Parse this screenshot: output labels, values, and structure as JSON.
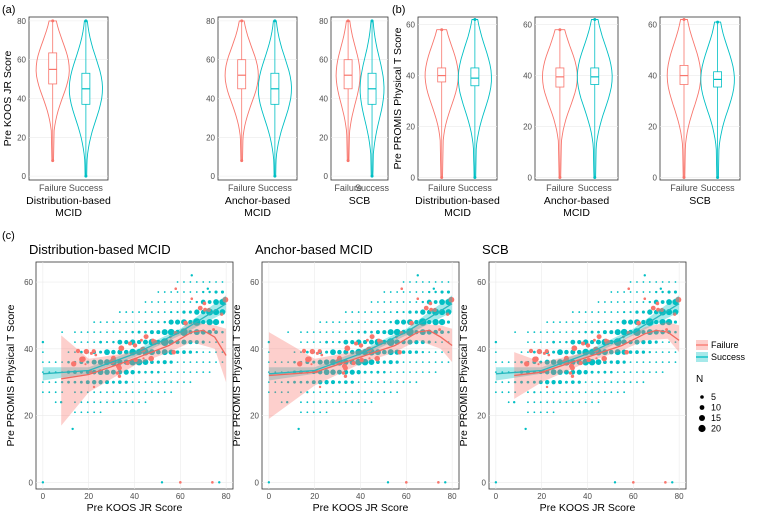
{
  "panel_labels": {
    "a": "(a)",
    "b": "(b)",
    "c": "(c)"
  },
  "colors": {
    "failure": "#F8766D",
    "success": "#00BFC4",
    "grid": "#EBEBEB",
    "trend_success": "#2AB7BD",
    "trend_failure": "#F0685E"
  },
  "chart_data": [
    {
      "type": "violin",
      "panel": "a",
      "ylabel": "Pre KOOS JR Score",
      "ylim": [
        -2,
        82
      ],
      "yticks": [
        0,
        20,
        40,
        60,
        80
      ],
      "facets": [
        {
          "xlabel": "Distribution-based\nMCID",
          "categories": [
            "Failure",
            "Success"
          ],
          "box": [
            {
              "min": 8,
              "q1": 47.5,
              "median": 55,
              "q3": 63.5,
              "max": 80
            },
            {
              "min": 0,
              "q1": 37,
              "median": 45,
              "q3": 53,
              "max": 80
            }
          ]
        },
        {
          "xlabel": "Anchor-based\nMCID",
          "categories": [
            "Failure",
            "Success"
          ],
          "box": [
            {
              "min": 8,
              "q1": 45,
              "median": 52,
              "q3": 60,
              "max": 80
            },
            {
              "min": 0,
              "q1": 37,
              "median": 45,
              "q3": 53,
              "max": 80
            }
          ]
        },
        {
          "xlabel": "SCB",
          "categories": [
            "Failure",
            "Success"
          ],
          "box": [
            {
              "min": 8,
              "q1": 45,
              "median": 52,
              "q3": 60,
              "max": 80
            },
            {
              "min": 0,
              "q1": 37,
              "median": 45,
              "q3": 53,
              "max": 80
            }
          ]
        }
      ]
    },
    {
      "type": "violin",
      "panel": "b",
      "ylabel": "Pre PROMIS Physical T Score",
      "ylim": [
        -1,
        63
      ],
      "yticks": [
        0,
        20,
        40,
        60
      ],
      "facets": [
        {
          "xlabel": "Distribution-based\nMCID",
          "categories": [
            "Failure",
            "Success"
          ],
          "box": [
            {
              "min": 0,
              "q1": 37.5,
              "median": 40,
              "q3": 43,
              "max": 58
            },
            {
              "min": 0,
              "q1": 36,
              "median": 39,
              "q3": 43,
              "max": 62
            }
          ]
        },
        {
          "xlabel": "Anchor-based\nMCID",
          "categories": [
            "Failure",
            "Success"
          ],
          "box": [
            {
              "min": 0,
              "q1": 35.5,
              "median": 39.5,
              "q3": 43,
              "max": 58
            },
            {
              "min": 0,
              "q1": 36.5,
              "median": 39.5,
              "q3": 43,
              "max": 62
            }
          ]
        },
        {
          "xlabel": "SCB",
          "categories": [
            "Failure",
            "Success"
          ],
          "box": [
            {
              "min": 0,
              "q1": 36.5,
              "median": 40,
              "q3": 44,
              "max": 62
            },
            {
              "min": 0,
              "q1": 35.5,
              "median": 38.5,
              "q3": 41.5,
              "max": 61
            }
          ]
        }
      ]
    },
    {
      "type": "scatter",
      "panel": "c",
      "xlabel": "Pre KOOS JR Score",
      "ylabel": "Pre PROMIS Physical T Score",
      "xlim": [
        -3,
        83
      ],
      "ylim": [
        -2,
        66
      ],
      "xticks": [
        0,
        20,
        40,
        60,
        80
      ],
      "yticks": [
        0,
        20,
        40,
        60
      ],
      "facets": [
        {
          "title": "Distribution-based MCID",
          "failure_curve": [
            [
              8,
              31
            ],
            [
              20,
              32.3
            ],
            [
              40,
              37
            ],
            [
              55,
              41
            ],
            [
              65,
              45
            ],
            [
              70,
              45.5
            ],
            [
              75,
              43.5
            ],
            [
              80,
              38
            ]
          ],
          "failure_band": [
            [
              8,
              17,
              44
            ],
            [
              20,
              27,
              37
            ],
            [
              40,
              35,
              39
            ],
            [
              55,
              39,
              43
            ],
            [
              65,
              42,
              48
            ],
            [
              75,
              40,
              47
            ],
            [
              80,
              30,
              46
            ]
          ],
          "success_curve": [
            [
              0,
              32.5
            ],
            [
              20,
              33.5
            ],
            [
              40,
              38.5
            ],
            [
              60,
              45
            ],
            [
              80,
              53.5
            ]
          ],
          "success_band": [
            [
              0,
              30.5,
              34.5
            ],
            [
              20,
              32.5,
              34.5
            ],
            [
              40,
              37.5,
              39.5
            ],
            [
              60,
              44,
              46
            ],
            [
              80,
              51,
              56
            ]
          ]
        },
        {
          "title": "Anchor-based MCID",
          "failure_curve": [
            [
              0,
              32
            ],
            [
              20,
              33
            ],
            [
              40,
              37.5
            ],
            [
              55,
              41
            ],
            [
              65,
              45
            ],
            [
              70,
              45.5
            ],
            [
              75,
              43.5
            ],
            [
              80,
              41
            ]
          ],
          "failure_band": [
            [
              0,
              19,
              45
            ],
            [
              20,
              29,
              37
            ],
            [
              40,
              35.5,
              39.5
            ],
            [
              55,
              39,
              43
            ],
            [
              65,
              42.5,
              47.5
            ],
            [
              75,
              40,
              47
            ],
            [
              80,
              36,
              46
            ]
          ],
          "success_curve": [
            [
              0,
              32.5
            ],
            [
              20,
              33.5
            ],
            [
              40,
              38.5
            ],
            [
              60,
              45
            ],
            [
              80,
              53.5
            ]
          ],
          "success_band": [
            [
              0,
              30.5,
              34.5
            ],
            [
              20,
              32.5,
              34.5
            ],
            [
              40,
              37.5,
              39.5
            ],
            [
              60,
              44,
              46
            ],
            [
              80,
              51,
              56
            ]
          ]
        },
        {
          "title": "SCB",
          "failure_curve": [
            [
              8,
              32
            ],
            [
              20,
              33
            ],
            [
              40,
              37.5
            ],
            [
              55,
              41
            ],
            [
              65,
              44.5
            ],
            [
              70,
              45.5
            ],
            [
              75,
              45
            ],
            [
              80,
              42.5
            ]
          ],
          "failure_band": [
            [
              8,
              25,
              39
            ],
            [
              20,
              30,
              36
            ],
            [
              40,
              36,
              39
            ],
            [
              55,
              39.5,
              42.5
            ],
            [
              65,
              42.5,
              46.5
            ],
            [
              75,
              43,
              48
            ],
            [
              80,
              39,
              47
            ]
          ],
          "success_curve": [
            [
              0,
              32.5
            ],
            [
              20,
              33.5
            ],
            [
              40,
              38.5
            ],
            [
              60,
              45
            ],
            [
              80,
              53.5
            ]
          ],
          "success_band": [
            [
              0,
              30.5,
              34.5
            ],
            [
              20,
              32.5,
              34.5
            ],
            [
              40,
              37.5,
              39.5
            ],
            [
              60,
              44,
              46
            ],
            [
              80,
              51,
              56
            ]
          ]
        }
      ],
      "legend": {
        "groups": [
          "Failure",
          "Success"
        ],
        "size_title": "N",
        "sizes": [
          5,
          10,
          15,
          20
        ]
      }
    }
  ]
}
